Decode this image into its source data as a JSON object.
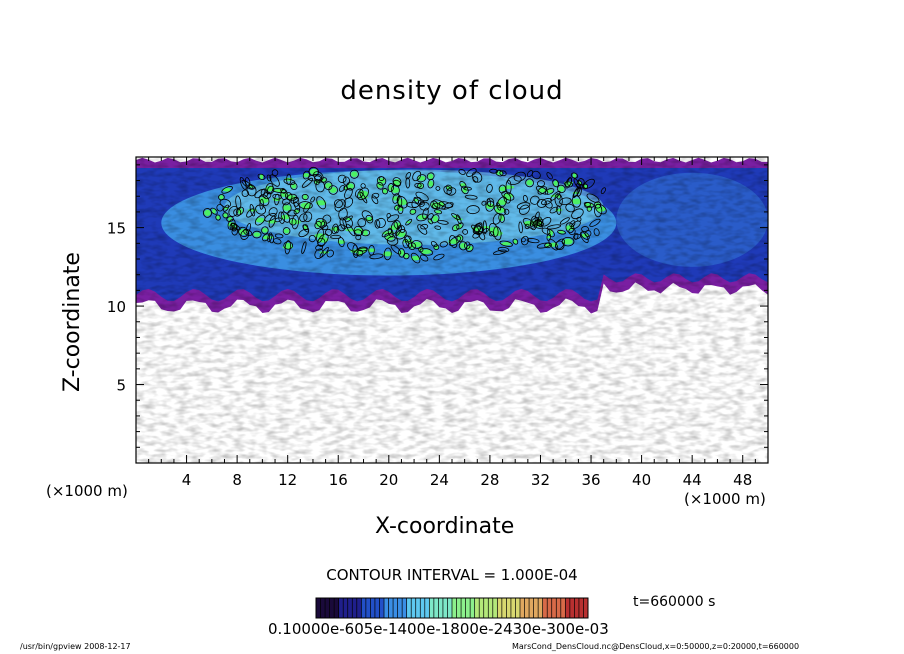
{
  "chart_data": {
    "type": "heatmap",
    "title": "density of cloud",
    "xlabel": "X-coordinate",
    "ylabel": "Z-coordinate",
    "x_unit": "(×1000 m)",
    "xlim": [
      0,
      50
    ],
    "ylim": [
      0,
      19.5
    ],
    "x_ticks": [
      4,
      8,
      12,
      16,
      20,
      24,
      28,
      32,
      36,
      40,
      44,
      48
    ],
    "y_ticks": [
      5,
      10,
      15
    ],
    "contour_interval": "CONTOUR INTERVAL = 1.000E-04",
    "time_label": "t=660000 s",
    "colorbar_labels": "0.10000e-605e-1400e-1800e-2430e-300e-03",
    "colorbar_colors": [
      "#1a0a3a",
      "#1f1f8c",
      "#2250c8",
      "#3a8ee6",
      "#5ec8f0",
      "#7ee8c8",
      "#8cf08c",
      "#b4e87a",
      "#d8d870",
      "#e0a860",
      "#d86a48",
      "#b83030"
    ],
    "colors": {
      "background": "#ffffff",
      "edge": "#7a1fa2",
      "low": "#1f3ab8",
      "mid": "#3f9ee8",
      "high": "#7fdcf0",
      "peak": "#4cf064",
      "contour": "#000000"
    },
    "cloud_layer": {
      "z_bottom_km_range": [
        10,
        12
      ],
      "z_top_km": 19.3,
      "core_x_km": [
        2,
        37
      ],
      "core_z_km": [
        12.5,
        18.5
      ]
    }
  },
  "footer": {
    "left": "/usr/bin/gpview   2008-12-17",
    "right": "MarsCond_DensCloud.nc@DensCloud,x=0:50000,z=0:20000,t=660000"
  }
}
